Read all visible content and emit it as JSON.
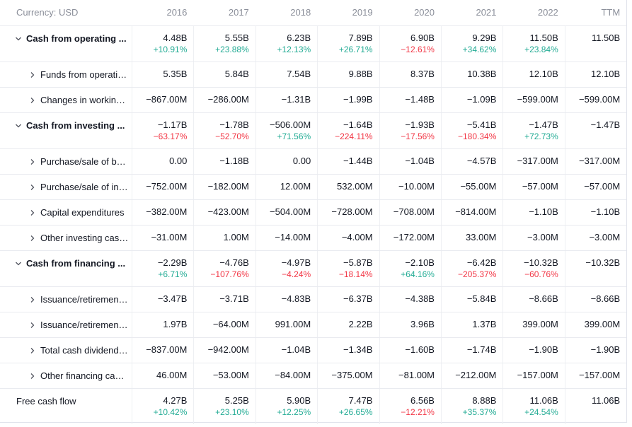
{
  "table": {
    "header": [
      "Currency: USD",
      "2016",
      "2017",
      "2018",
      "2019",
      "2020",
      "2021",
      "2022",
      "TTM"
    ],
    "rows": [
      {
        "label": "Cash from operating ...",
        "values": [
          "4.48B",
          "5.55B",
          "6.23B",
          "7.89B",
          "6.90B",
          "9.29B",
          "11.50B",
          "11.50B"
        ],
        "growth": [
          "+10.91%",
          "+23.88%",
          "+12.13%",
          "+26.71%",
          "−12.61%",
          "+34.62%",
          "+23.84%"
        ]
      },
      {
        "label": "Funds from operati…",
        "values": [
          "5.35B",
          "5.84B",
          "7.54B",
          "9.88B",
          "8.37B",
          "10.38B",
          "12.10B",
          "12.10B"
        ]
      },
      {
        "label": "Changes in workin…",
        "values": [
          "−867.00M",
          "−286.00M",
          "−1.31B",
          "−1.99B",
          "−1.48B",
          "−1.09B",
          "−599.00M",
          "−599.00M"
        ]
      },
      {
        "label": "Cash from investing ...",
        "values": [
          "−1.17B",
          "−1.78B",
          "−506.00M",
          "−1.64B",
          "−1.93B",
          "−5.41B",
          "−1.47B",
          "−1.47B"
        ],
        "growth": [
          "−63.17%",
          "−52.70%",
          "+71.56%",
          "−224.11%",
          "−17.56%",
          "−180.34%",
          "+72.73%"
        ]
      },
      {
        "label": "Purchase/sale of b…",
        "values": [
          "0.00",
          "−1.18B",
          "0.00",
          "−1.44B",
          "−1.04B",
          "−4.57B",
          "−317.00M",
          "−317.00M"
        ]
      },
      {
        "label": "Purchase/sale of in…",
        "values": [
          "−752.00M",
          "−182.00M",
          "12.00M",
          "532.00M",
          "−10.00M",
          "−55.00M",
          "−57.00M",
          "−57.00M"
        ]
      },
      {
        "label": "Capital expenditures",
        "values": [
          "−382.00M",
          "−423.00M",
          "−504.00M",
          "−728.00M",
          "−708.00M",
          "−814.00M",
          "−1.10B",
          "−1.10B"
        ]
      },
      {
        "label": "Other investing cas…",
        "values": [
          "−31.00M",
          "1.00M",
          "−14.00M",
          "−4.00M",
          "−172.00M",
          "33.00M",
          "−3.00M",
          "−3.00M"
        ]
      },
      {
        "label": "Cash from financing ...",
        "values": [
          "−2.29B",
          "−4.76B",
          "−4.97B",
          "−5.87B",
          "−2.10B",
          "−6.42B",
          "−10.32B",
          "−10.32B"
        ],
        "growth": [
          "+6.71%",
          "−107.76%",
          "−4.24%",
          "−18.14%",
          "+64.16%",
          "−205.37%",
          "−60.76%"
        ]
      },
      {
        "label": "Issuance/retiremen…",
        "values": [
          "−3.47B",
          "−3.71B",
          "−4.83B",
          "−6.37B",
          "−4.38B",
          "−5.84B",
          "−8.66B",
          "−8.66B"
        ]
      },
      {
        "label": "Issuance/retiremen…",
        "values": [
          "1.97B",
          "−64.00M",
          "991.00M",
          "2.22B",
          "3.96B",
          "1.37B",
          "399.00M",
          "399.00M"
        ]
      },
      {
        "label": "Total cash dividend…",
        "values": [
          "−837.00M",
          "−942.00M",
          "−1.04B",
          "−1.34B",
          "−1.60B",
          "−1.74B",
          "−1.90B",
          "−1.90B"
        ]
      },
      {
        "label": "Other financing ca…",
        "values": [
          "46.00M",
          "−53.00M",
          "−84.00M",
          "−375.00M",
          "−81.00M",
          "−212.00M",
          "−157.00M",
          "−157.00M"
        ]
      },
      {
        "label": "Free cash flow",
        "values": [
          "4.27B",
          "5.25B",
          "5.90B",
          "7.47B",
          "6.56B",
          "8.88B",
          "11.06B",
          "11.06B"
        ],
        "growth": [
          "+10.42%",
          "+23.10%",
          "+12.25%",
          "+26.65%",
          "−12.21%",
          "+35.37%",
          "+24.54%"
        ]
      }
    ]
  }
}
